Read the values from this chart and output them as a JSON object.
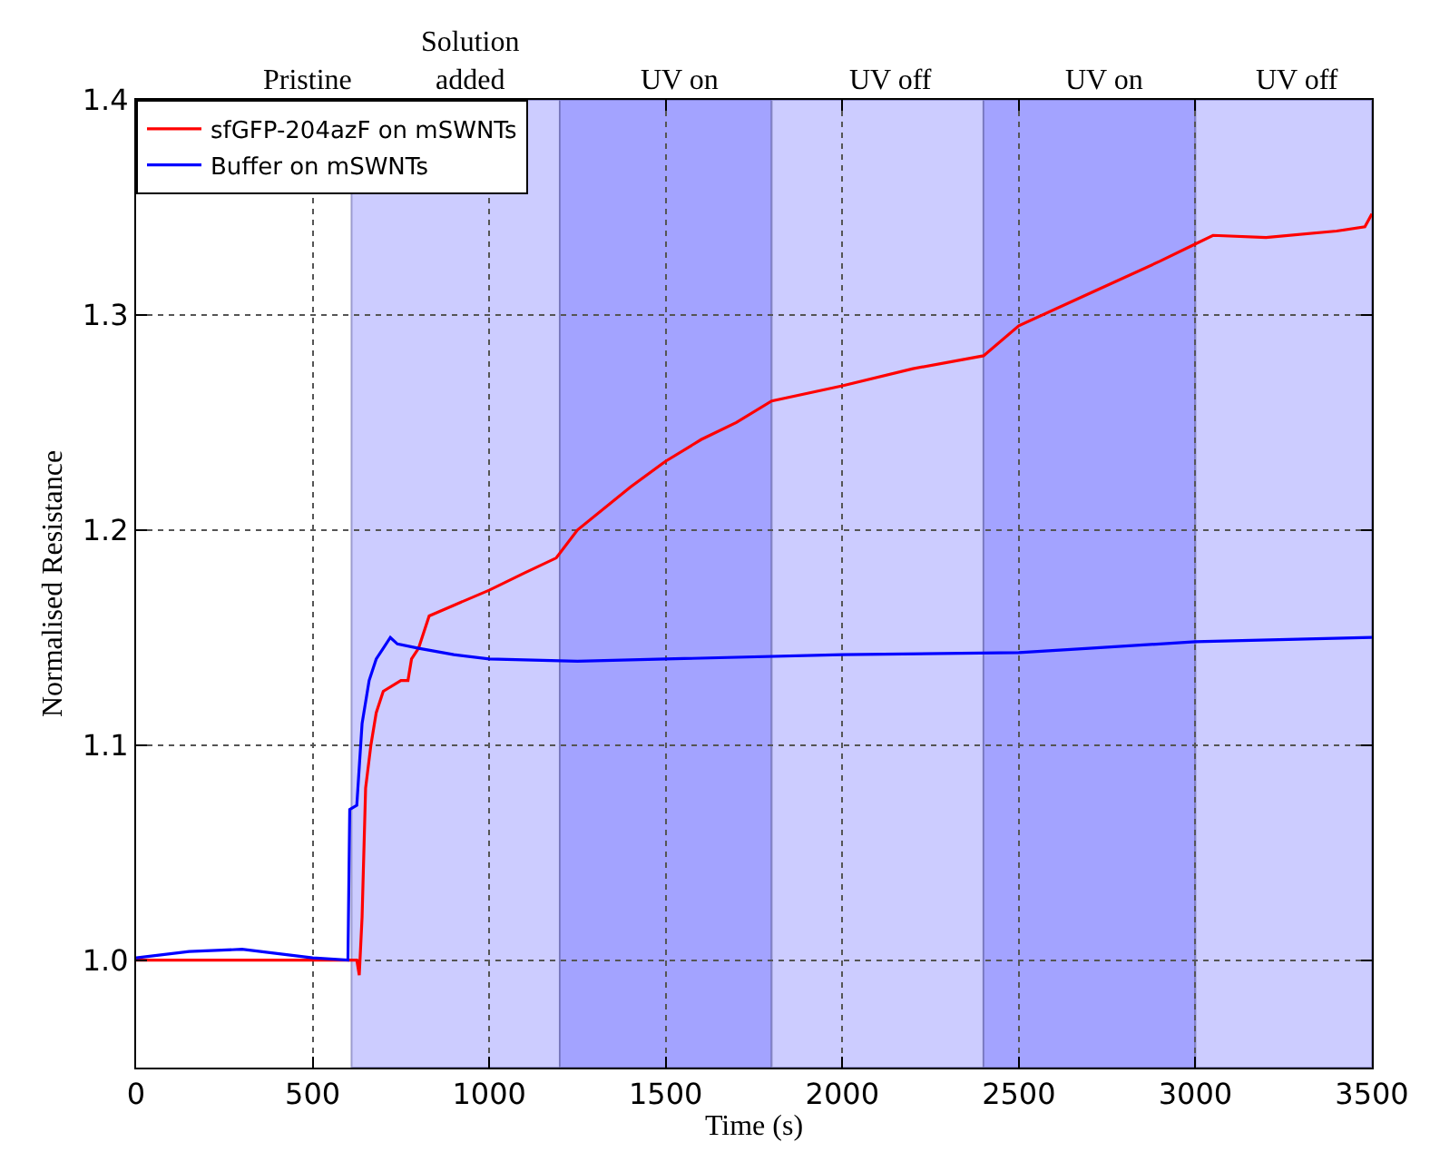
{
  "chart_data": {
    "type": "line",
    "xlabel": "Time (s)",
    "ylabel": "Normalised Resistance",
    "xlim": [
      0,
      3500
    ],
    "xticks": [
      0,
      500,
      1000,
      1500,
      2000,
      2500,
      3000,
      3500
    ],
    "ylim": [
      0.95,
      1.4
    ],
    "yticks": [
      {
        "value": 1.0,
        "label": "1.0"
      },
      1.1,
      1.2,
      1.3,
      1.4
    ],
    "grid": true,
    "legend": "top left",
    "marker": "none",
    "line_style": "solid",
    "annotations": [
      "Pristine"
    ],
    "bands": [
      {
        "axis": "x",
        "from": 610,
        "to": 1200,
        "label": "Solution\nadded",
        "color": "#ccccff"
      },
      {
        "axis": "x",
        "from": 1200,
        "to": 1800,
        "label": "UV on",
        "color": "#a3a3ff"
      },
      {
        "axis": "x",
        "from": 1800,
        "to": 2400,
        "label": "UV off",
        "color": "#ccccff"
      },
      {
        "axis": "x",
        "from": 2400,
        "to": 3000,
        "label": "UV on",
        "color": "#a3a3ff"
      },
      {
        "axis": "x",
        "from": 3000,
        "to": 3500,
        "label": "UV off",
        "color": "#ccccff"
      }
    ],
    "series": [
      {
        "name": "sfGFP-204azF on mSWNTs",
        "color": "#ff0000",
        "x": [
          0,
          600,
          625,
          632,
          640,
          650,
          665,
          680,
          700,
          750,
          770,
          780,
          800,
          830,
          900,
          1000,
          1100,
          1190,
          1250,
          1400,
          1500,
          1600,
          1700,
          1800,
          2000,
          2200,
          2400,
          2500,
          2700,
          2900,
          3000,
          3050,
          3200,
          3400,
          3480,
          3500
        ],
        "values": [
          1.0,
          1.0,
          1.0,
          0.993,
          1.02,
          1.08,
          1.1,
          1.115,
          1.125,
          1.13,
          1.13,
          1.14,
          1.145,
          1.16,
          1.165,
          1.172,
          1.18,
          1.187,
          1.2,
          1.22,
          1.232,
          1.242,
          1.25,
          1.26,
          1.267,
          1.275,
          1.281,
          1.295,
          1.31,
          1.325,
          1.333,
          1.337,
          1.336,
          1.339,
          1.341,
          1.347
        ]
      },
      {
        "name": "Buffer on mSWNTs",
        "color": "#0000ff",
        "x": [
          0,
          150,
          300,
          400,
          500,
          600,
          605,
          625,
          640,
          660,
          680,
          700,
          720,
          740,
          800,
          900,
          1000,
          1250,
          1500,
          2000,
          2500,
          2700,
          3000,
          3500
        ],
        "values": [
          1.001,
          1.004,
          1.005,
          1.003,
          1.001,
          1.0,
          1.07,
          1.072,
          1.11,
          1.13,
          1.14,
          1.145,
          1.15,
          1.147,
          1.145,
          1.142,
          1.14,
          1.139,
          1.14,
          1.142,
          1.143,
          1.145,
          1.148,
          1.15
        ]
      }
    ]
  }
}
